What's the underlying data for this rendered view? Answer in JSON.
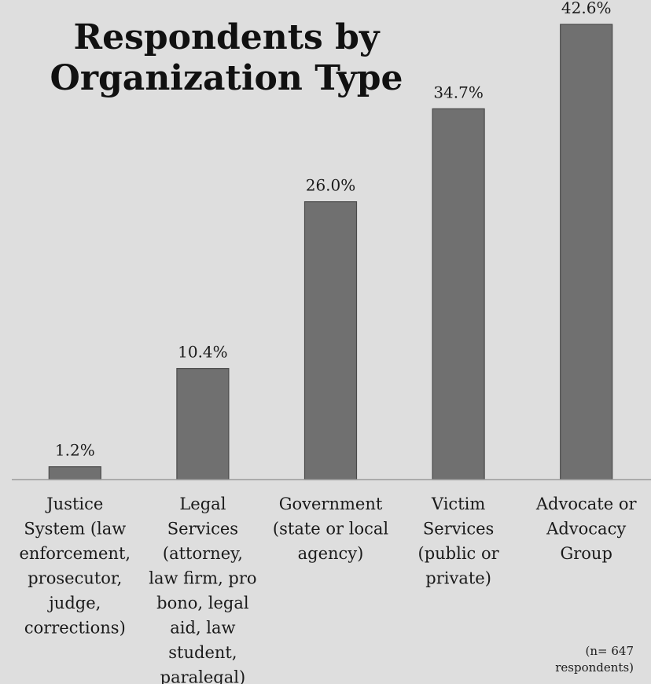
{
  "chart_data": {
    "type": "bar",
    "title": [
      "Respondents by",
      "Organization Type"
    ],
    "categories": [
      [
        "Justice",
        "System (law",
        "enforcement,",
        "prosecutor,",
        "judge,",
        "corrections)"
      ],
      [
        "Legal",
        "Services",
        "(attorney,",
        "law firm, pro",
        "bono, legal",
        "aid, law",
        "student,",
        "paralegal)"
      ],
      [
        "Government",
        "(state or local",
        "agency)"
      ],
      [
        "Victim",
        "Services",
        "(public or",
        "private)"
      ],
      [
        "Advocate or",
        "Advocacy",
        "Group"
      ]
    ],
    "values": [
      1.2,
      10.4,
      26.0,
      34.7,
      42.6
    ],
    "data_labels": [
      "1.2%",
      "10.4%",
      "26.0%",
      "34.7%",
      "42.6%"
    ],
    "ylim": [
      0,
      42.6
    ],
    "grid": false,
    "bar_color": "#707070",
    "note": [
      "(n= 647",
      "respondents)"
    ]
  }
}
